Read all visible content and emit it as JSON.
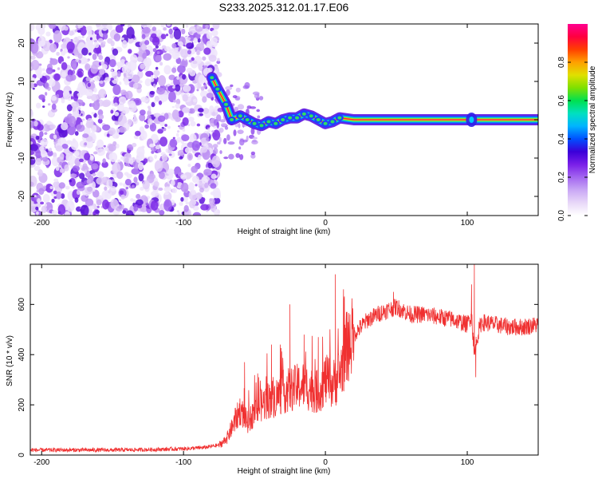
{
  "title": "S233.2025.312.01.17.E06",
  "chart_data": [
    {
      "type": "heatmap",
      "name": "spectrogram",
      "xlabel": "Height of straight line (km)",
      "ylabel": "Frequency (Hz)",
      "xlim": [
        -208,
        150
      ],
      "ylim": [
        -25,
        25
      ],
      "x_ticks": [
        -200,
        -100,
        0,
        100
      ],
      "y_ticks": [
        20,
        10,
        0,
        -10,
        -20
      ],
      "colorbar": {
        "label": "Normalized spectral amplitude",
        "range": [
          0,
          1
        ],
        "ticks": [
          0.0,
          0.2,
          0.4,
          0.6,
          0.8
        ],
        "colors": [
          "#ffffff",
          "#e8d8f8",
          "#c9a8f5",
          "#a366f0",
          "#7a1fe8",
          "#3b00d8",
          "#0050ff",
          "#00b4ff",
          "#00e0c0",
          "#00e050",
          "#7fe000",
          "#e0e000",
          "#ffa000",
          "#ff4000",
          "#ff0040",
          "#ff0090"
        ]
      },
      "noise_region": [
        -208,
        -75
      ],
      "ridge": [
        {
          "x": -80,
          "f": 11
        },
        {
          "x": -76,
          "f": 8
        },
        {
          "x": -70,
          "f": 4
        },
        {
          "x": -66,
          "f": 0
        },
        {
          "x": -60,
          "f": 1
        },
        {
          "x": -55,
          "f": 0
        },
        {
          "x": -50,
          "f": -1
        },
        {
          "x": -45,
          "f": -1.5
        },
        {
          "x": -40,
          "f": -0.5
        },
        {
          "x": -35,
          "f": -1
        },
        {
          "x": -30,
          "f": 0
        },
        {
          "x": -25,
          "f": 0.5
        },
        {
          "x": -20,
          "f": 0.5
        },
        {
          "x": -15,
          "f": 1.5
        },
        {
          "x": -10,
          "f": 1
        },
        {
          "x": -5,
          "f": 0
        },
        {
          "x": 0,
          "f": -1
        },
        {
          "x": 5,
          "f": -0.5
        },
        {
          "x": 10,
          "f": 0.5
        },
        {
          "x": 20,
          "f": 0
        },
        {
          "x": 30,
          "f": 0
        },
        {
          "x": 50,
          "f": 0
        },
        {
          "x": 100,
          "f": 0
        },
        {
          "x": 150,
          "f": 0
        }
      ]
    },
    {
      "type": "line",
      "name": "snr",
      "xlabel": "Height of straight line (km)",
      "ylabel": "SNR (10 * v/v)",
      "xlim": [
        -208,
        150
      ],
      "ylim": [
        0,
        760
      ],
      "x_ticks": [
        -200,
        -100,
        0,
        100
      ],
      "y_ticks": [
        0,
        200,
        400,
        600
      ],
      "color": "#f03030",
      "x": [
        -208,
        -180,
        -150,
        -120,
        -100,
        -85,
        -75,
        -70,
        -65,
        -60,
        -55,
        -50,
        -45,
        -40,
        -35,
        -30,
        -25,
        -20,
        -15,
        -10,
        -5,
        0,
        5,
        10,
        15,
        20,
        25,
        30,
        40,
        50,
        60,
        70,
        80,
        90,
        100,
        103,
        105,
        107,
        110,
        120,
        130,
        140,
        150
      ],
      "y": [
        20,
        20,
        20,
        22,
        25,
        30,
        40,
        60,
        120,
        180,
        130,
        170,
        200,
        220,
        230,
        250,
        260,
        270,
        280,
        260,
        250,
        300,
        280,
        320,
        430,
        480,
        510,
        540,
        570,
        590,
        560,
        560,
        550,
        540,
        520,
        560,
        400,
        470,
        530,
        520,
        510,
        510,
        520
      ],
      "spikes": [
        {
          "x": -57,
          "y": 370
        },
        {
          "x": -47,
          "y": 310
        },
        {
          "x": -38,
          "y": 440
        },
        {
          "x": -25,
          "y": 600
        },
        {
          "x": -15,
          "y": 480
        },
        {
          "x": -5,
          "y": 470
        },
        {
          "x": 7,
          "y": 720
        },
        {
          "x": 48,
          "y": 650
        },
        {
          "x": 103,
          "y": 680
        },
        {
          "x": 105,
          "y": 760
        },
        {
          "x": 106,
          "y": 310
        }
      ]
    }
  ]
}
